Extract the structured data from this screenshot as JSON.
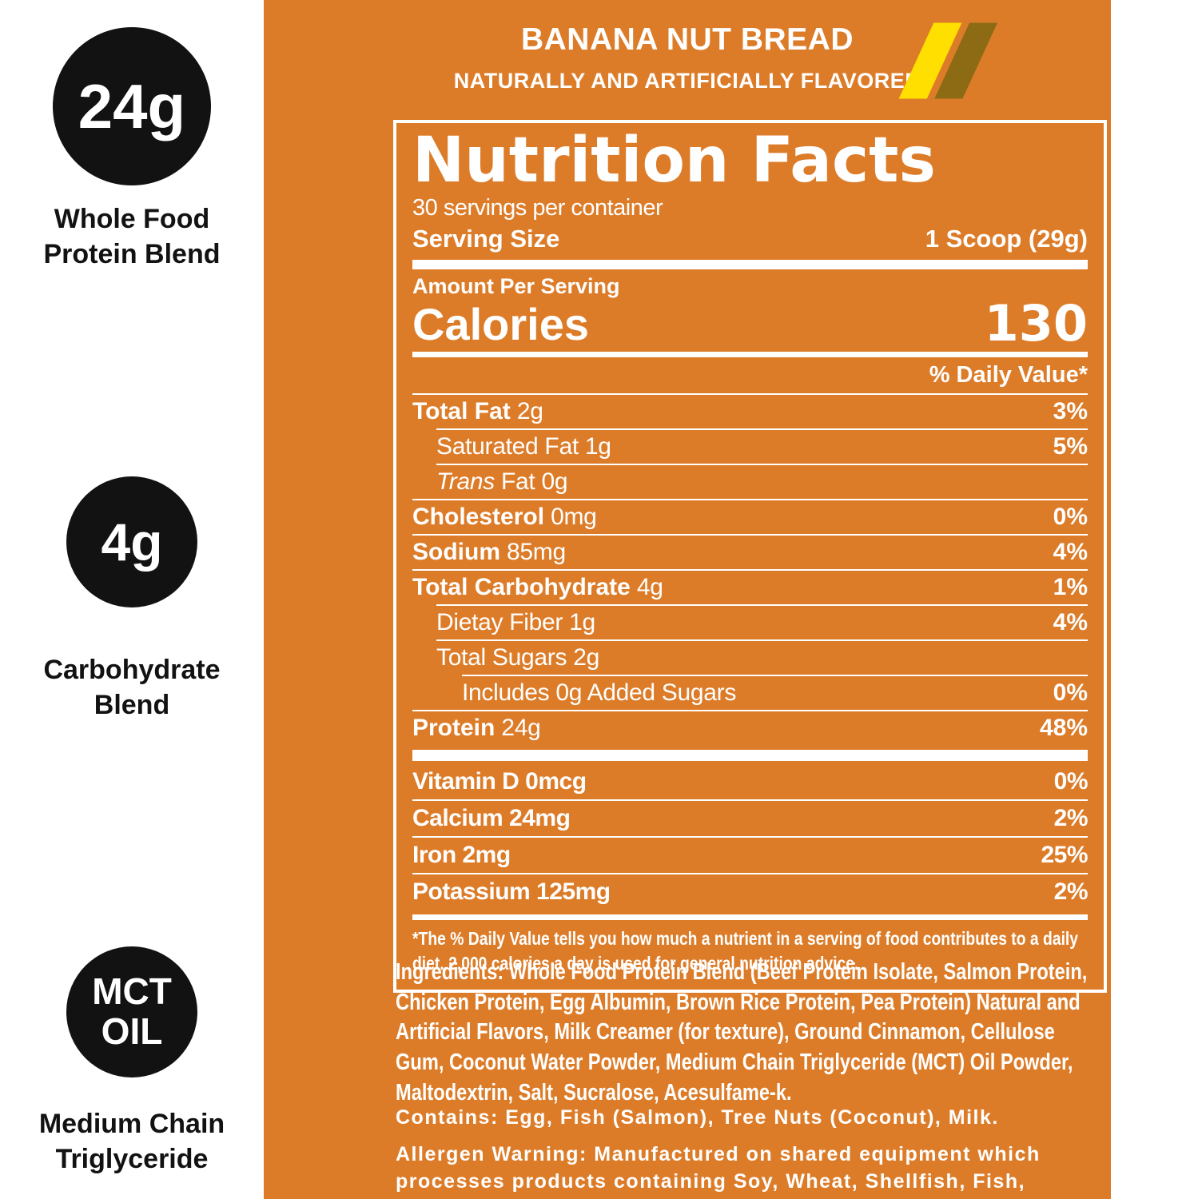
{
  "colors": {
    "orange": "#DD7C28",
    "black": "#121212",
    "white": "#FFFFFF",
    "yellow": "#FFDF00",
    "brown": "#8C6B14"
  },
  "badges": [
    {
      "value": "24g",
      "label": "Whole Food Protein Blend"
    },
    {
      "value": "4g",
      "label": "Carbohydrate Blend"
    },
    {
      "value": "MCT OIL",
      "label": "Medium Chain Triglyceride"
    }
  ],
  "header": {
    "flavor": "BANANA NUT BREAD",
    "subtitle": "NATURALLY AND ARTIFICIALLY FLAVORED"
  },
  "nutrition": {
    "title": "Nutrition Facts",
    "servings": "30 servings per container",
    "serving_size_label": "Serving Size",
    "serving_size_value": "1 Scoop (29g)",
    "amount_per_serving": "Amount Per Serving",
    "calories_label": "Calories",
    "calories_value": "130",
    "daily_value_header": "% Daily Value*",
    "rows": [
      {
        "bold": "Total Fat",
        "rest": "2g",
        "dv": "3%",
        "indent": 0
      },
      {
        "rest": "Saturated Fat 1g",
        "dv": "5%",
        "indent": 1
      },
      {
        "italic": "Trans",
        "rest": "Fat 0g",
        "dv": "",
        "indent": 1
      },
      {
        "bold": "Cholesterol",
        "rest": "0mg",
        "dv": "0%",
        "indent": 0
      },
      {
        "bold": "Sodium",
        "rest": "85mg",
        "dv": "4%",
        "indent": 0
      },
      {
        "bold": "Total Carbohydrate",
        "rest": "4g",
        "dv": "1%",
        "indent": 0
      },
      {
        "rest": "Dietay Fiber 1g",
        "dv": "4%",
        "indent": 1
      },
      {
        "rest": "Total Sugars 2g",
        "dv": "",
        "indent": 1
      },
      {
        "rest": "Includes 0g Added Sugars",
        "dv": "0%",
        "indent": 2
      },
      {
        "bold": "Protein",
        "rest": "24g",
        "dv": "48%",
        "indent": 0
      }
    ],
    "vitamins": [
      {
        "rest": "Vitamin D 0mcg",
        "dv": "0%"
      },
      {
        "rest": "Calcium 24mg",
        "dv": "2%"
      },
      {
        "rest": "Iron 2mg",
        "dv": "25%"
      },
      {
        "rest": "Potassium 125mg",
        "dv": "2%"
      }
    ],
    "footnote": "*The % Daily Value tells you how much a nutrient in a serving of food contributes to a daily diet. 2,000 calories a day is used for general nutrition advice."
  },
  "footer": {
    "ingredients": "Ingredients: Whole Food Protein Blend (Beef Protein Isolate, Salmon Protein, Chicken Protein, Egg Albumin, Brown Rice Protein, Pea Protein) Natural and Artificial Flavors, Milk Creamer (for texture), Ground Cinnamon, Cellulose Gum, Coconut Water Powder, Medium Chain Triglyceride (MCT) Oil Powder, Maltodextrin, Salt, Sucralose, Acesulfame-k.",
    "contains": "Contains: Egg, Fish (Salmon), Tree Nuts (Coconut), Milk.",
    "allergen": "Allergen Warning: Manufactured on shared equipment which processes products containing Soy, Wheat, Shellfish, Fish, and Peanuts."
  }
}
